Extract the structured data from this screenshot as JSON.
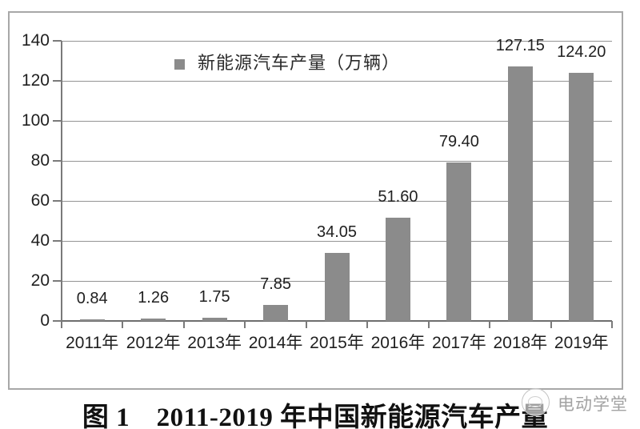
{
  "chart_data": {
    "type": "bar",
    "categories": [
      "2011年",
      "2012年",
      "2013年",
      "2014年",
      "2015年",
      "2016年",
      "2017年",
      "2018年",
      "2019年"
    ],
    "values": [
      0.84,
      1.26,
      1.75,
      7.85,
      34.05,
      51.6,
      79.4,
      127.15,
      124.2
    ],
    "value_labels": [
      "0.84",
      "1.26",
      "1.75",
      "7.85",
      "34.05",
      "51.60",
      "79.40",
      "127.15",
      "124.20"
    ],
    "legend": "新能源汽车产量（万辆）",
    "title": "",
    "xlabel": "",
    "ylabel": "",
    "ylim": [
      0,
      140
    ],
    "yticks": [
      0,
      20,
      40,
      60,
      80,
      100,
      120,
      140
    ],
    "grid": "horizontal",
    "legend_position": "inside-top",
    "bar_color": "#8b8b8b"
  },
  "caption": "图 1　2011-2019 年中国新能源汽车产量",
  "watermark": "电动学堂"
}
